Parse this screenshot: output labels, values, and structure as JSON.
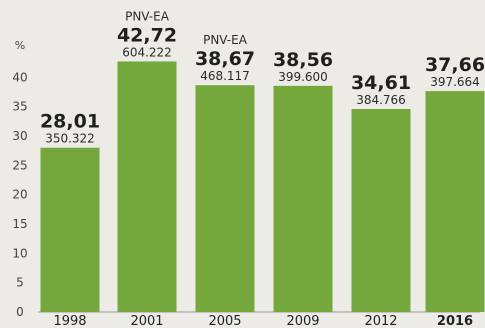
{
  "chart_data": {
    "type": "bar",
    "unit_label": "%",
    "categories": [
      "1998",
      "2001",
      "2005",
      "2009",
      "2012",
      "2016"
    ],
    "values": [
      28.01,
      42.72,
      38.67,
      38.56,
      34.61,
      37.66
    ],
    "value_labels": [
      "28,01",
      "42,72",
      "38,67",
      "38,56",
      "34,61",
      "37,66"
    ],
    "votes": [
      "350.322",
      "604.222",
      "468.117",
      "399.600",
      "384.766",
      "397.664"
    ],
    "party_labels": [
      "",
      "PNV-EA",
      "PNV-EA",
      "",
      "",
      ""
    ],
    "highlight_category": "2016",
    "ylim": [
      0,
      45
    ],
    "yticks": [
      0,
      5,
      10,
      15,
      20,
      25,
      30,
      35,
      40
    ],
    "bar_color": "#74a73c",
    "background": "#ecebe6"
  }
}
